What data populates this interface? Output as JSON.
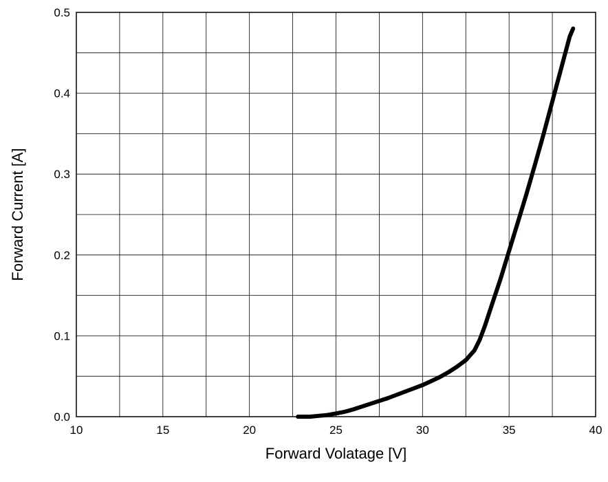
{
  "chart_data": {
    "type": "line",
    "title": "",
    "xlabel": "Forward Volatage [V]",
    "ylabel": "Forward Current [A]",
    "xlim": [
      10,
      40
    ],
    "ylim": [
      0,
      0.5
    ],
    "x_ticks": [
      10,
      15,
      20,
      25,
      30,
      35,
      40
    ],
    "x_tick_labels": [
      "10",
      "15",
      "20",
      "25",
      "30",
      "35",
      "40"
    ],
    "y_ticks": [
      0,
      0.1,
      0.2,
      0.3,
      0.4,
      0.5
    ],
    "y_tick_labels": [
      "0.0",
      "0.1",
      "0.2",
      "0.3",
      "0.4",
      "0.5"
    ],
    "grid": true,
    "x_minor_step": 2.5,
    "y_minor_step": 0.05,
    "line_color": "#000000",
    "series": [
      {
        "x": [
          22.8,
          23.5,
          24.0,
          24.5,
          25.0,
          25.5,
          26.0,
          27.0,
          28.0,
          29.0,
          30.0,
          31.0,
          31.5,
          32.0,
          32.5,
          33.0,
          33.3,
          33.6,
          34.0,
          34.5,
          35.0,
          35.5,
          36.0,
          36.5,
          37.0,
          37.5,
          38.0,
          38.5,
          38.7
        ],
        "y": [
          0.0,
          0.0,
          0.001,
          0.002,
          0.004,
          0.006,
          0.009,
          0.016,
          0.023,
          0.031,
          0.039,
          0.049,
          0.055,
          0.062,
          0.07,
          0.082,
          0.095,
          0.112,
          0.138,
          0.17,
          0.205,
          0.24,
          0.275,
          0.312,
          0.35,
          0.39,
          0.43,
          0.47,
          0.48
        ]
      }
    ]
  }
}
